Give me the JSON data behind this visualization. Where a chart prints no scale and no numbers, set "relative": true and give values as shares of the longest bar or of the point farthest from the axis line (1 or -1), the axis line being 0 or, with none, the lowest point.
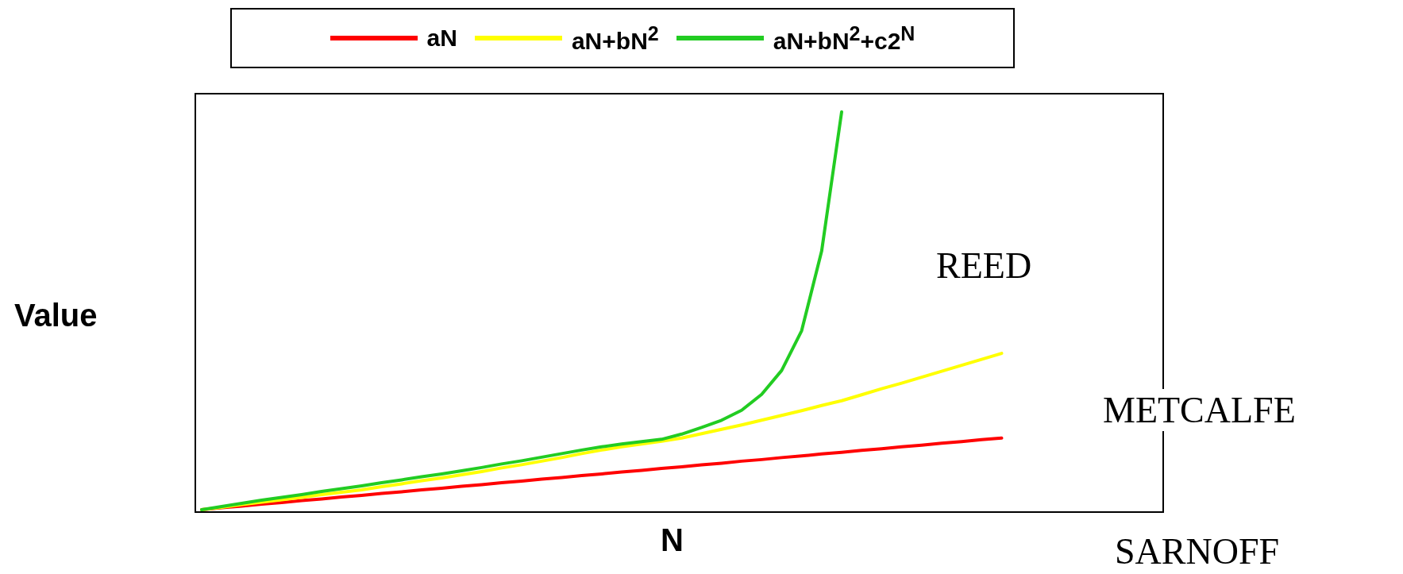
{
  "chart_data": {
    "type": "line",
    "relative": true,
    "xlabel": "N",
    "ylabel": "Value",
    "legend": "top",
    "marker": "none",
    "tick_labels": false,
    "categories": [
      null,
      null,
      null,
      null,
      null,
      null,
      null,
      null,
      null,
      null,
      null,
      null,
      null,
      null,
      null,
      null,
      null,
      null,
      null,
      null,
      null,
      null,
      null,
      null,
      null,
      null,
      null,
      null,
      null,
      null,
      null,
      null,
      null,
      null,
      null,
      null,
      null,
      null,
      null,
      null,
      null,
      null,
      null,
      null,
      null,
      null,
      null,
      null,
      null
    ],
    "series": [
      {
        "name": "aN",
        "color": "#ff0000",
        "values": [
          0,
          0.005,
          0.009,
          0.014,
          0.018,
          0.023,
          0.027,
          0.032,
          0.036,
          0.041,
          0.045,
          0.05,
          0.054,
          0.059,
          0.063,
          0.068,
          0.072,
          0.077,
          0.081,
          0.086,
          0.09,
          0.095,
          0.099,
          0.104,
          0.108,
          0.113,
          0.117,
          0.122,
          0.126,
          0.131,
          0.135,
          0.14,
          0.144,
          0.149,
          0.153,
          0.158,
          0.162,
          0.167,
          0.171,
          0.176,
          0.18,
          null,
          null,
          null,
          null,
          null,
          null,
          null,
          null
        ]
      },
      {
        "name": "aN+bN$^{2}$",
        "color": "#ffff00",
        "values": [
          0,
          0.006,
          0.013,
          0.019,
          0.025,
          0.031,
          0.038,
          0.044,
          0.05,
          0.058,
          0.065,
          0.073,
          0.08,
          0.088,
          0.096,
          0.105,
          0.113,
          0.122,
          0.131,
          0.141,
          0.15,
          0.158,
          0.165,
          0.172,
          0.18,
          0.191,
          0.202,
          0.213,
          0.225,
          0.237,
          0.249,
          0.262,
          0.274,
          0.289,
          0.304,
          0.318,
          0.333,
          0.348,
          0.363,
          0.378,
          0.393,
          null,
          null,
          null,
          null,
          null,
          null,
          null,
          null
        ]
      },
      {
        "name": "aN+bN$^{2}$+c2$^{N}$",
        "color": "#22cc22",
        "values": [
          0,
          0.008,
          0.016,
          0.024,
          0.031,
          0.038,
          0.046,
          0.053,
          0.06,
          0.068,
          0.075,
          0.083,
          0.09,
          0.098,
          0.106,
          0.115,
          0.123,
          0.132,
          0.141,
          0.15,
          0.158,
          0.165,
          0.171,
          0.177,
          0.19,
          0.207,
          0.225,
          0.25,
          0.29,
          0.35,
          0.45,
          0.65,
          1,
          null,
          null,
          null,
          null,
          null,
          null,
          null,
          null,
          null,
          null,
          null,
          null,
          null,
          null,
          null,
          null
        ]
      }
    ],
    "annotations": [
      "REED",
      "METCALFE",
      "SARNOFF"
    ]
  }
}
